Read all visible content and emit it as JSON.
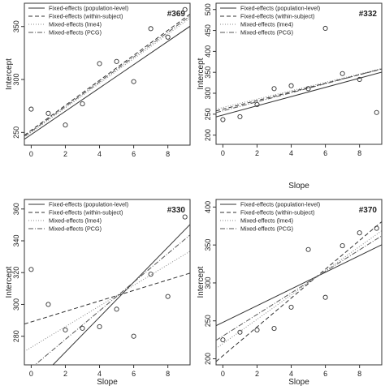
{
  "chart_data": [
    {
      "type": "scatter",
      "id": "#369",
      "xlabel": "",
      "ylabel": "Intercept",
      "xlim": [
        -0.4,
        9.3
      ],
      "ylim": [
        238,
        372
      ],
      "xticks": [
        0,
        2,
        4,
        6,
        8
      ],
      "yticks": [
        250,
        300,
        350
      ],
      "points": [
        [
          0,
          272
        ],
        [
          1,
          268
        ],
        [
          2,
          257
        ],
        [
          3,
          277
        ],
        [
          4,
          315
        ],
        [
          5,
          317
        ],
        [
          6,
          298
        ],
        [
          7,
          348
        ],
        [
          8,
          340
        ],
        [
          9,
          366
        ]
      ],
      "lines": [
        {
          "name": "Fixed-effects (population-level)",
          "style": "solid",
          "intercept": 248,
          "slope": 11.0
        },
        {
          "name": "Fixed-effects (within-subject)",
          "style": "dashed",
          "intercept": 252,
          "slope": 11.8
        },
        {
          "name": "Mixed-effects (lme4)",
          "style": "dotted",
          "intercept": 250,
          "slope": 11.6
        },
        {
          "name": "Mixed-effects (PCG)",
          "style": "dashdot",
          "intercept": 251,
          "slope": 11.7
        }
      ],
      "legend_position": "top-left"
    },
    {
      "type": "scatter",
      "id": "#332",
      "xlabel": "Slope",
      "ylabel": "Intercept",
      "xlim": [
        -0.4,
        9.3
      ],
      "ylim": [
        178,
        515
      ],
      "xticks": [
        0,
        2,
        4,
        6,
        8
      ],
      "yticks": [
        200,
        250,
        300,
        350,
        400,
        450,
        500
      ],
      "points": [
        [
          0,
          237
        ],
        [
          1,
          244
        ],
        [
          2,
          273
        ],
        [
          3,
          311
        ],
        [
          4,
          318
        ],
        [
          5,
          311
        ],
        [
          6,
          455
        ],
        [
          7,
          347
        ],
        [
          8,
          333
        ],
        [
          9,
          254
        ]
      ],
      "lines": [
        {
          "name": "Fixed-effects (population-level)",
          "style": "solid",
          "intercept": 248,
          "slope": 11.0
        },
        {
          "name": "Fixed-effects (within-subject)",
          "style": "dashed",
          "intercept": 262,
          "slope": 10.3
        },
        {
          "name": "Mixed-effects (lme4)",
          "style": "dotted",
          "intercept": 266,
          "slope": 10.0
        },
        {
          "name": "Mixed-effects (PCG)",
          "style": "dashdot",
          "intercept": 258,
          "slope": 10.8
        }
      ],
      "legend_position": "top-left"
    },
    {
      "type": "scatter",
      "id": "#330",
      "xlabel": "Slope",
      "ylabel": "Intercept",
      "xlim": [
        -0.4,
        9.3
      ],
      "ylim": [
        262,
        366
      ],
      "xticks": [
        0,
        2,
        4,
        6,
        8
      ],
      "yticks": [
        280,
        300,
        320,
        340,
        360
      ],
      "points": [
        [
          0,
          322
        ],
        [
          1,
          300
        ],
        [
          2,
          284
        ],
        [
          3,
          285
        ],
        [
          4,
          286
        ],
        [
          5,
          297
        ],
        [
          6,
          280
        ],
        [
          7,
          319
        ],
        [
          8,
          305
        ],
        [
          9,
          355
        ]
      ],
      "lines": [
        {
          "name": "Fixed-effects (population-level)",
          "style": "solid",
          "intercept": 248,
          "slope": 11.0
        },
        {
          "name": "Fixed-effects (within-subject)",
          "style": "dashed",
          "intercept": 289,
          "slope": 3.3
        },
        {
          "name": "Mixed-effects (lme4)",
          "style": "dotted",
          "intercept": 273,
          "slope": 6.5
        },
        {
          "name": "Mixed-effects (PCG)",
          "style": "dashdot",
          "intercept": 260,
          "slope": 9.0
        }
      ],
      "legend_position": "top-left"
    },
    {
      "type": "scatter",
      "id": "#370",
      "xlabel": "Slope",
      "ylabel": "Intercept",
      "xlim": [
        -0.4,
        9.3
      ],
      "ylim": [
        192,
        410
      ],
      "xticks": [
        0,
        2,
        4,
        6,
        8
      ],
      "yticks": [
        200,
        250,
        300,
        350,
        400
      ],
      "points": [
        [
          0,
          225
        ],
        [
          1,
          235
        ],
        [
          2,
          238
        ],
        [
          3,
          240
        ],
        [
          4,
          268
        ],
        [
          5,
          344
        ],
        [
          6,
          281
        ],
        [
          7,
          349
        ],
        [
          8,
          366
        ],
        [
          9,
          372
        ]
      ],
      "lines": [
        {
          "name": "Fixed-effects (population-level)",
          "style": "solid",
          "intercept": 248,
          "slope": 11.0
        },
        {
          "name": "Fixed-effects (within-subject)",
          "style": "dashed",
          "intercept": 204,
          "slope": 19.0
        },
        {
          "name": "Mixed-effects (lme4)",
          "style": "dotted",
          "intercept": 220,
          "slope": 16.0
        },
        {
          "name": "Mixed-effects (PCG)",
          "style": "dashdot",
          "intercept": 230,
          "slope": 14.2
        }
      ],
      "legend_position": "top-left"
    }
  ]
}
